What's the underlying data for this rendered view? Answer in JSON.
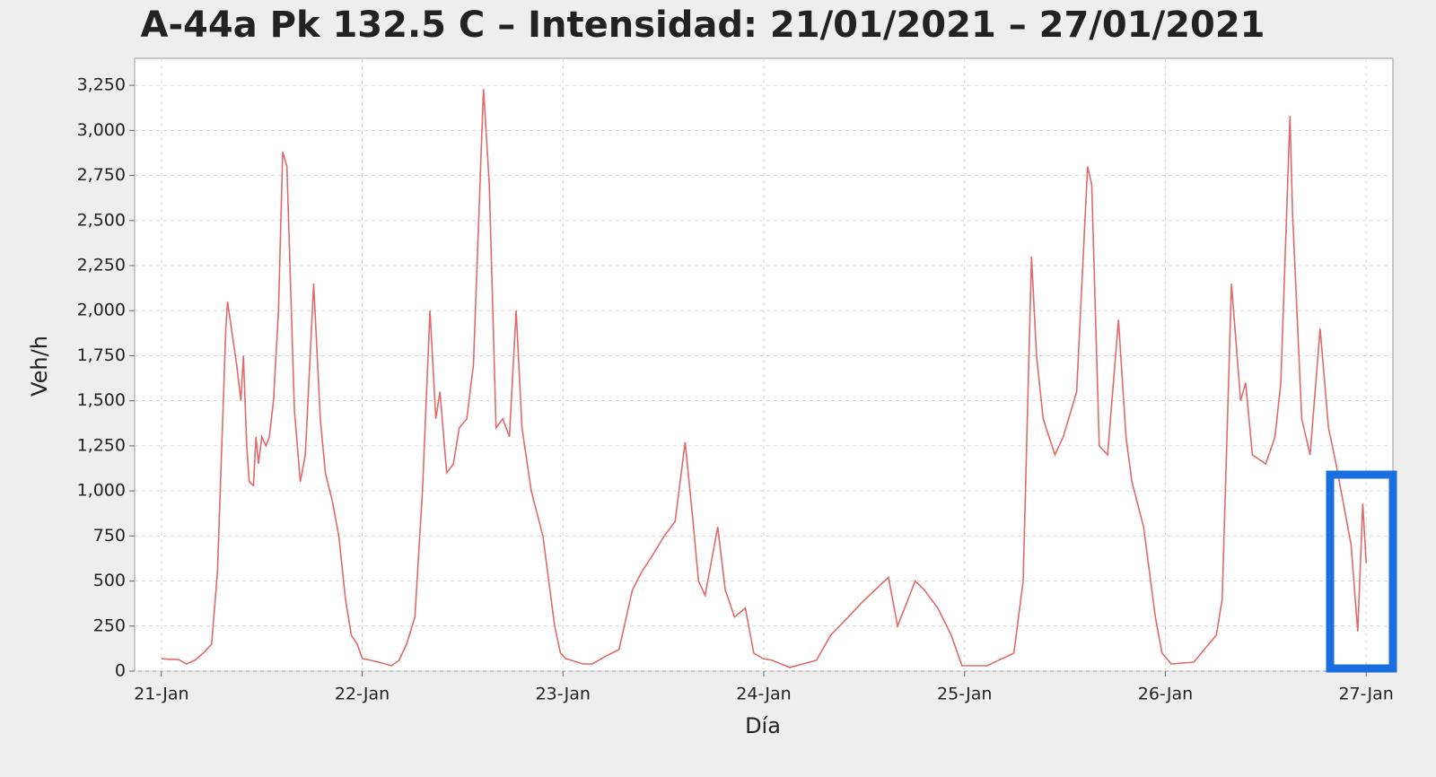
{
  "chart_data": {
    "type": "line",
    "title": "A-44a Pk 132.5 C – Intensidad: 21/01/2021 – 27/01/2021",
    "x_label": "Día",
    "y_label": "Veh/h",
    "color": "#e06a6a",
    "grid": true,
    "x": [
      0,
      1,
      2,
      3,
      4,
      5,
      6,
      6.7,
      7.7,
      7.9,
      9,
      9.5,
      9.8,
      10.2,
      10.5,
      11,
      11.3,
      11.6,
      12,
      12.5,
      12.9,
      13.4,
      14,
      14.5,
      15,
      15.9,
      16.6,
      17.2,
      18.2,
      19,
      19.6,
      20.4,
      21.2,
      22,
      22.7,
      23.4,
      24,
      25,
      26,
      27.5,
      28.4,
      29.3,
      30.3,
      31.2,
      32.1,
      32.8,
      33.3,
      34.1,
      34.9,
      35.6,
      36.5,
      37.3,
      38.5,
      39.2,
      40,
      40.8,
      41.6,
      42.4,
      43.1,
      44.2,
      45.6,
      47,
      47.7,
      48.3,
      50.4,
      51.5,
      53,
      54.7,
      56.3,
      57.4,
      58.8,
      60.1,
      61.4,
      62.6,
      63.5,
      64.2,
      65,
      66.5,
      67.4,
      68.5,
      69.8,
      70.8,
      71.9,
      73,
      75.1,
      78.3,
      80,
      82.1,
      83.7,
      85.3,
      86.9,
      88,
      90.1,
      91.2,
      92.8,
      94.4,
      95.7,
      98.7,
      101.9,
      103,
      104,
      104.6,
      105.4,
      106.8,
      107.8,
      109.4,
      110.7,
      111.2,
      112.1,
      113.1,
      114.4,
      115.3,
      116,
      117.4,
      118.8,
      119.6,
      120.7,
      123.4,
      126.1,
      126.8,
      127.9,
      129,
      129.6,
      130.4,
      132,
      133.1,
      133.8,
      134.9,
      135.2,
      136.3,
      137.3,
      138.5,
      139.5,
      140.4,
      141.2,
      142.2,
      143,
      143.6,
      144
    ],
    "values": [
      70,
      65,
      65,
      40,
      60,
      100,
      150,
      550,
      1900,
      2050,
      1700,
      1500,
      1750,
      1250,
      1050,
      1030,
      1300,
      1150,
      1300,
      1250,
      1300,
      1500,
      2000,
      2880,
      2800,
      1450,
      1050,
      1200,
      2150,
      1400,
      1100,
      950,
      750,
      400,
      200,
      150,
      70,
      60,
      50,
      30,
      60,
      150,
      300,
      1000,
      2000,
      1400,
      1550,
      1100,
      1150,
      1350,
      1400,
      1700,
      3230,
      2700,
      1350,
      1400,
      1300,
      2000,
      1350,
      1000,
      750,
      250,
      100,
      70,
      40,
      40,
      80,
      120,
      450,
      550,
      650,
      750,
      830,
      1270,
      850,
      500,
      420,
      800,
      450,
      300,
      350,
      100,
      70,
      60,
      20,
      60,
      200,
      300,
      380,
      450,
      520,
      250,
      500,
      450,
      350,
      200,
      30,
      30,
      100,
      500,
      2300,
      1750,
      1400,
      1200,
      1300,
      1550,
      2800,
      2700,
      1250,
      1200,
      1950,
      1300,
      1050,
      800,
      300,
      100,
      40,
      50,
      200,
      400,
      2150,
      1500,
      1600,
      1200,
      1150,
      1300,
      1600,
      3080,
      2550,
      1400,
      1200,
      1900,
      1350,
      1150,
      950,
      700,
      220,
      930,
      600
    ],
    "xlim": [
      -3.2,
      147.2
    ],
    "ylim": [
      0,
      3400
    ],
    "xticks": [
      {
        "value": 0,
        "label": "21-Jan"
      },
      {
        "value": 24,
        "label": "22-Jan"
      },
      {
        "value": 48,
        "label": "23-Jan"
      },
      {
        "value": 72,
        "label": "24-Jan"
      },
      {
        "value": 96,
        "label": "25-Jan"
      },
      {
        "value": 120,
        "label": "26-Jan"
      },
      {
        "value": 144,
        "label": "27-Jan"
      }
    ],
    "yticks": [
      0,
      250,
      500,
      750,
      {
        "value": 1000,
        "label": "1,000"
      },
      {
        "value": 1250,
        "label": "1,250"
      },
      {
        "value": 1500,
        "label": "1,500"
      },
      {
        "value": 1750,
        "label": "1,750"
      },
      {
        "value": 2000,
        "label": "2,000"
      },
      {
        "value": 2250,
        "label": "2,250"
      },
      {
        "value": 2500,
        "label": "2,500"
      },
      {
        "value": 2750,
        "label": "2,750"
      },
      {
        "value": 3000,
        "label": "3,000"
      },
      {
        "value": 3250,
        "label": "3,250"
      }
    ]
  }
}
